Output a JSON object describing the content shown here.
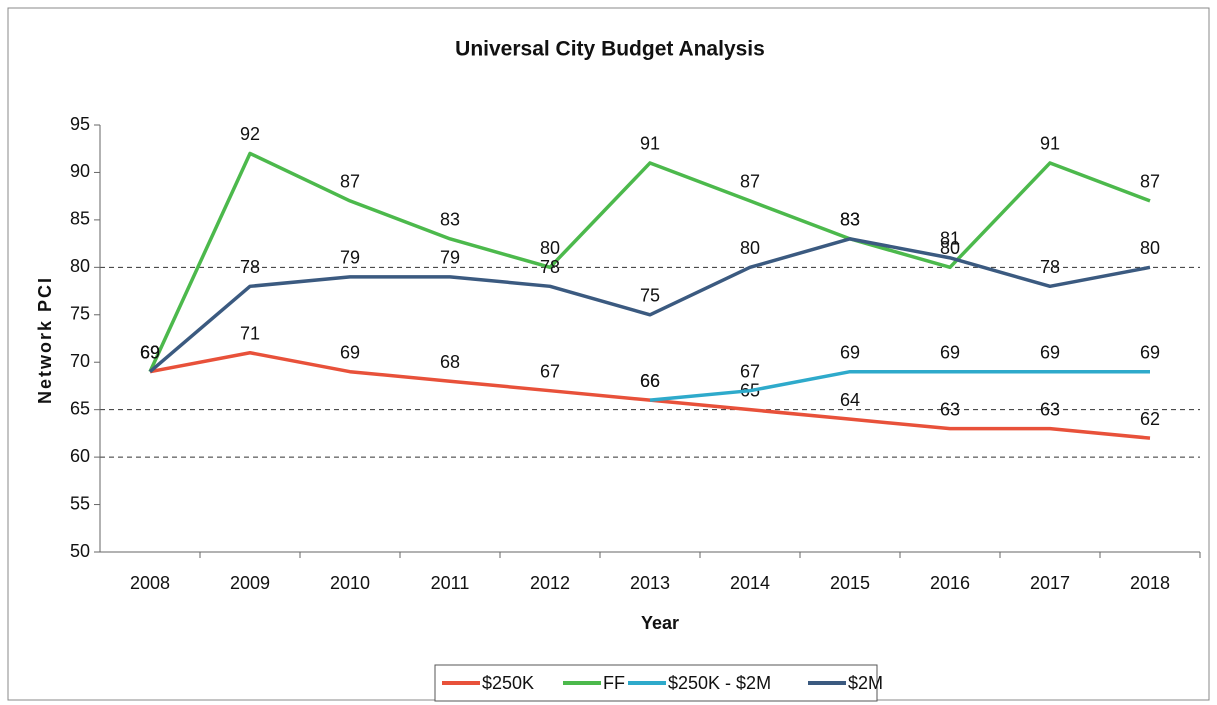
{
  "chart_data": {
    "type": "line",
    "title": "Universal City Budget Analysis",
    "x_label": "Year",
    "y_label": "Network PCI",
    "categories": [
      "2008",
      "2009",
      "2010",
      "2011",
      "2012",
      "2013",
      "2014",
      "2015",
      "2016",
      "2017",
      "2018"
    ],
    "series": [
      {
        "name": "$250K",
        "color": "#e8513a",
        "values": [
          69,
          71,
          69,
          68,
          67,
          66,
          65,
          64,
          63,
          63,
          62
        ]
      },
      {
        "name": "FF",
        "color": "#4cb94c",
        "values": [
          69,
          92,
          87,
          83,
          80,
          91,
          87,
          83,
          80,
          91,
          87
        ]
      },
      {
        "name": "$250K - $2M",
        "color": "#2eaacb",
        "values": [
          null,
          null,
          null,
          null,
          null,
          66,
          67,
          69,
          69,
          69,
          69
        ]
      },
      {
        "name": "$2M",
        "color": "#3b5a80",
        "values": [
          69,
          78,
          79,
          79,
          78,
          75,
          80,
          83,
          81,
          78,
          80
        ]
      }
    ],
    "ylim": [
      50,
      95
    ],
    "yticks": [
      50,
      55,
      60,
      65,
      70,
      75,
      80,
      85,
      90,
      95
    ],
    "reference_lines": [
      60,
      65,
      80
    ],
    "legend": "bottom"
  }
}
